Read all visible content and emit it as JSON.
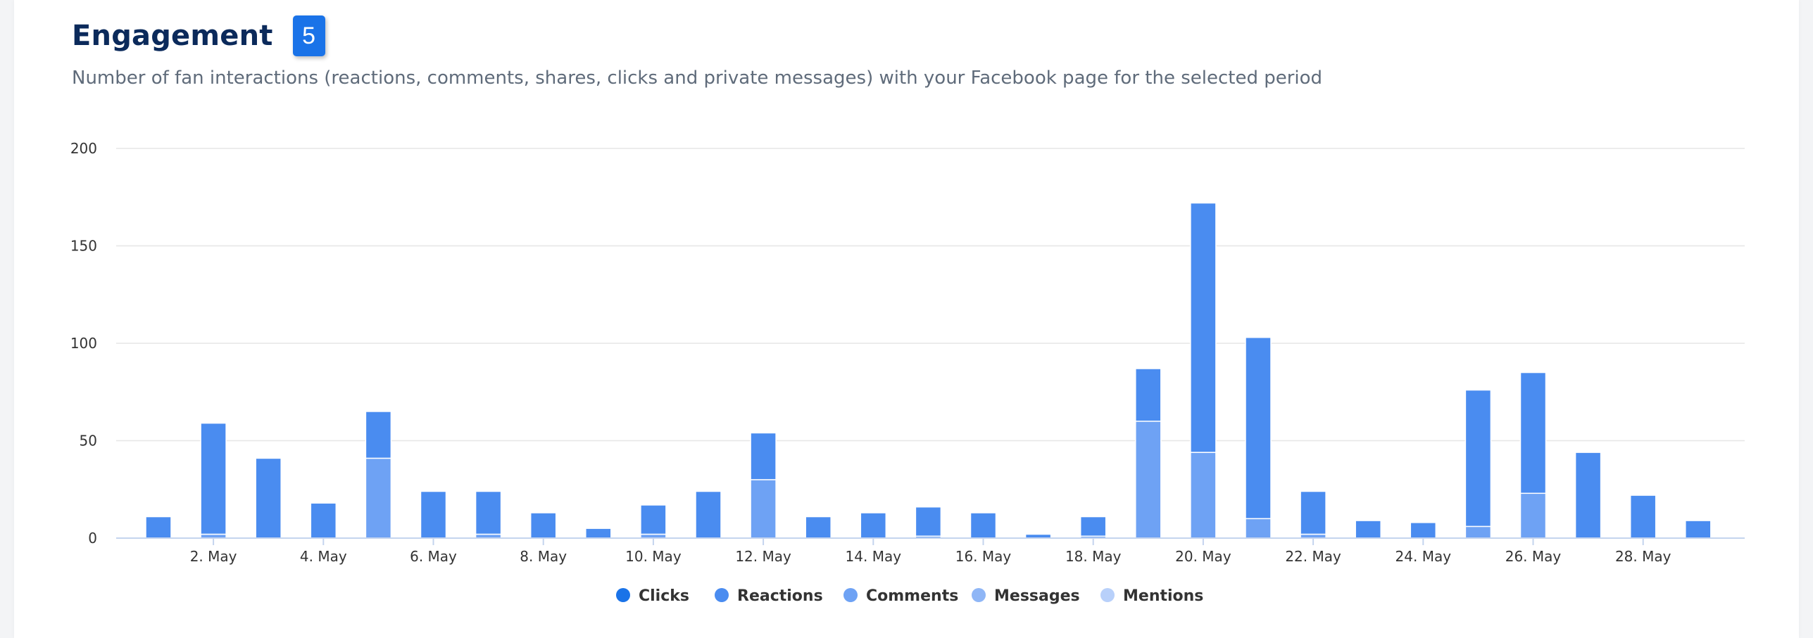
{
  "header": {
    "title": "Engagement",
    "badge": "5",
    "subtitle": "Number of fan interactions (reactions, comments, shares, clicks and private messages) with your Facebook page for the selected period"
  },
  "colors": {
    "clicks": "#1a73e8",
    "reactions": "#4a8cf0",
    "comments": "#6ea2f4",
    "messages": "#8fb6f6",
    "mentions": "#b8d0fa",
    "grid": "#e6e6e6",
    "axis": "#c4d4ee"
  },
  "chart_data": {
    "type": "bar",
    "stacked": true,
    "title": "",
    "xlabel": "",
    "ylabel": "",
    "ylim": [
      0,
      200
    ],
    "yticks": [
      0,
      50,
      100,
      150,
      200
    ],
    "grid": true,
    "legend_position": "bottom-center",
    "days": [
      1,
      2,
      3,
      4,
      5,
      6,
      7,
      8,
      9,
      10,
      11,
      12,
      13,
      14,
      15,
      16,
      17,
      18,
      19,
      20,
      21,
      22,
      23,
      24,
      25,
      26,
      27,
      28,
      29
    ],
    "xtick_labels": [
      "2. May",
      "4. May",
      "6. May",
      "8. May",
      "10. May",
      "12. May",
      "14. May",
      "16. May",
      "18. May",
      "20. May",
      "22. May",
      "24. May",
      "26. May",
      "28. May"
    ],
    "xtick_days": [
      2,
      4,
      6,
      8,
      10,
      12,
      14,
      16,
      18,
      20,
      22,
      24,
      26,
      28
    ],
    "series": [
      {
        "name": "Clicks",
        "key": "clicks",
        "values": [
          0,
          0,
          0,
          0,
          0,
          0,
          0,
          0,
          0,
          0,
          0,
          0,
          0,
          0,
          0,
          0,
          0,
          0,
          0,
          0,
          0,
          0,
          0,
          0,
          0,
          0,
          0,
          0,
          0
        ]
      },
      {
        "name": "Reactions",
        "key": "reactions",
        "values": [
          11,
          57,
          41,
          18,
          24,
          24,
          22,
          13,
          5,
          15,
          24,
          24,
          11,
          13,
          15,
          13,
          2,
          10,
          27,
          128,
          93,
          22,
          9,
          8,
          70,
          62,
          44,
          22,
          9
        ]
      },
      {
        "name": "Comments",
        "key": "comments",
        "values": [
          0,
          2,
          0,
          0,
          41,
          0,
          2,
          0,
          0,
          2,
          0,
          30,
          0,
          0,
          1,
          0,
          0,
          1,
          60,
          44,
          10,
          2,
          0,
          0,
          6,
          23,
          0,
          0,
          0
        ]
      },
      {
        "name": "Messages",
        "key": "messages",
        "values": [
          0,
          0,
          0,
          0,
          0,
          0,
          0,
          0,
          0,
          0,
          0,
          0,
          0,
          0,
          0,
          0,
          0,
          0,
          0,
          0,
          0,
          0,
          0,
          0,
          0,
          0,
          0,
          0,
          0
        ]
      },
      {
        "name": "Mentions",
        "key": "mentions",
        "values": [
          0,
          0,
          0,
          0,
          0,
          0,
          0,
          0,
          0,
          0,
          0,
          0,
          0,
          0,
          0,
          0,
          0,
          0,
          0,
          0,
          0,
          0,
          0,
          0,
          0,
          0,
          0,
          0,
          0
        ]
      }
    ]
  },
  "legend": {
    "items": [
      {
        "label": "Clicks",
        "key": "clicks"
      },
      {
        "label": "Reactions",
        "key": "reactions"
      },
      {
        "label": "Comments",
        "key": "comments"
      },
      {
        "label": "Messages",
        "key": "messages"
      },
      {
        "label": "Mentions",
        "key": "mentions"
      }
    ]
  }
}
